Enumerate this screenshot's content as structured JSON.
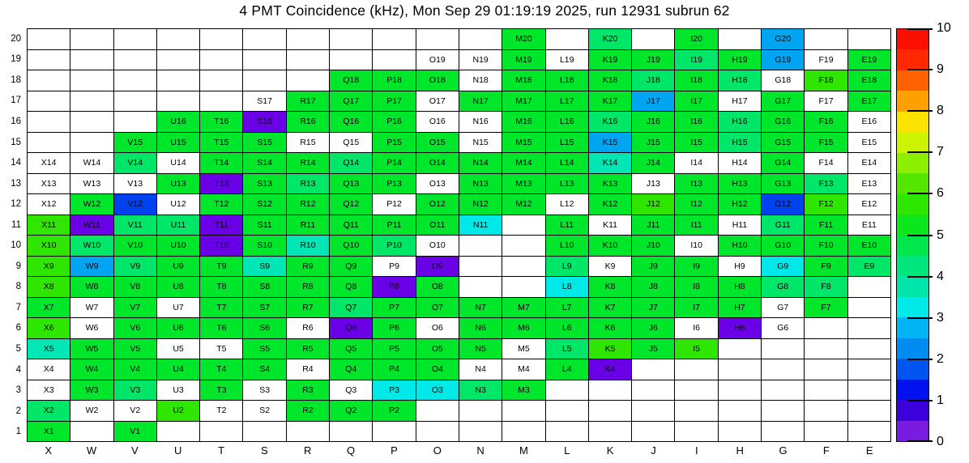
{
  "title": "4 PMT Coincidence (kHz), Mon Sep 29 01:19:19 2025, run 12931 subrun 62",
  "chart_data": {
    "type": "heatmap",
    "title": "4 PMT Coincidence (kHz), Mon Sep 29 01:19:19 2025, run 12931 subrun 62",
    "xlabel": "",
    "ylabel": "",
    "grid": "on",
    "columns": [
      "X",
      "W",
      "V",
      "U",
      "T",
      "S",
      "R",
      "Q",
      "P",
      "O",
      "N",
      "M",
      "L",
      "K",
      "J",
      "I",
      "H",
      "G",
      "F",
      "E"
    ],
    "rows": [
      20,
      19,
      18,
      17,
      16,
      15,
      14,
      13,
      12,
      11,
      10,
      9,
      8,
      7,
      6,
      5,
      4,
      3,
      2,
      1
    ],
    "palette": {
      "Y": "#2ee600",
      "G": "#00e62a",
      "S": "#00e668",
      "T": "#00e6b4",
      "C": "#00e9e9",
      "LB": "#00a5f2",
      "B": "#0043ee",
      "P": "#6a00e6",
      "W": "#ffffff"
    },
    "estimated_value_khz_by_code": {
      "Y": 6.2,
      "G": 5.7,
      "S": 5.1,
      "T": 4.2,
      "C": 3.7,
      "LB": 2.8,
      "B": 1.8,
      "P": 0.3,
      "W": 0
    },
    "cells": {
      "20": {
        "M": "G",
        "K": "S",
        "I": "G",
        "G": "LB"
      },
      "19": {
        "O": "W",
        "N": "W",
        "M": "G",
        "L": "W",
        "K": "G",
        "J": "G",
        "I": "S",
        "H": "G",
        "G": "LB",
        "F": "W",
        "E": "G"
      },
      "18": {
        "Q": "G",
        "P": "G",
        "O": "G",
        "N": "W",
        "M": "G",
        "L": "G",
        "K": "G",
        "J": "S",
        "I": "G",
        "H": "S",
        "G": "W",
        "F": "Y",
        "E": "G"
      },
      "17": {
        "S": "W",
        "R": "G",
        "Q": "G",
        "P": "G",
        "O": "W",
        "N": "G",
        "M": "G",
        "L": "G",
        "K": "G",
        "J": "LB",
        "I": "G",
        "H": "W",
        "G": "G",
        "F": "W",
        "E": "G"
      },
      "16": {
        "U": "G",
        "T": "G",
        "S": "P",
        "R": "G",
        "Q": "G",
        "P": "G",
        "O": "W",
        "N": "W",
        "M": "G",
        "L": "G",
        "K": "S",
        "J": "G",
        "I": "G",
        "H": "S",
        "G": "G",
        "F": "G",
        "E": "W"
      },
      "15": {
        "V": "G",
        "U": "G",
        "T": "G",
        "S": "G",
        "R": "W",
        "Q": "W",
        "P": "G",
        "O": "G",
        "N": "W",
        "M": "G",
        "L": "G",
        "K": "LB",
        "J": "G",
        "I": "G",
        "H": "S",
        "G": "G",
        "F": "G",
        "E": "W"
      },
      "14": {
        "X": "W",
        "W": "W",
        "V": "S",
        "U": "W",
        "T": "G",
        "S": "G",
        "R": "G",
        "Q": "S",
        "P": "G",
        "O": "G",
        "N": "G",
        "M": "G",
        "L": "G",
        "K": "T",
        "J": "G",
        "I": "W",
        "H": "W",
        "G": "G",
        "F": "W",
        "E": "W"
      },
      "13": {
        "X": "W",
        "W": "W",
        "V": "W",
        "U": "G",
        "T": "P",
        "S": "G",
        "R": "S",
        "Q": "G",
        "P": "G",
        "O": "W",
        "N": "G",
        "M": "G",
        "L": "G",
        "K": "G",
        "J": "W",
        "I": "G",
        "H": "G",
        "G": "G",
        "F": "S",
        "E": "W"
      },
      "12": {
        "X": "W",
        "W": "G",
        "V": "B",
        "U": "W",
        "T": "G",
        "S": "G",
        "R": "G",
        "Q": "G",
        "P": "W",
        "O": "G",
        "N": "G",
        "M": "G",
        "L": "W",
        "K": "G",
        "J": "Y",
        "I": "G",
        "H": "G",
        "G": "B",
        "F": "Y",
        "E": "W"
      },
      "11": {
        "X": "Y",
        "W": "P",
        "V": "S",
        "U": "S",
        "T": "P",
        "S": "G",
        "R": "G",
        "Q": "G",
        "P": "G",
        "O": "G",
        "N": "C",
        "L": "G",
        "K": "W",
        "J": "G",
        "I": "G",
        "H": "W",
        "G": "S",
        "F": "G",
        "E": "W"
      },
      "10": {
        "X": "Y",
        "W": "S",
        "V": "G",
        "U": "G",
        "T": "P",
        "S": "G",
        "R": "T",
        "Q": "G",
        "P": "S",
        "O": "W",
        "L": "G",
        "K": "G",
        "J": "G",
        "I": "W",
        "H": "G",
        "G": "G",
        "F": "G",
        "E": "G"
      },
      "9": {
        "X": "Y",
        "W": "LB",
        "V": "S",
        "U": "G",
        "T": "G",
        "S": "T",
        "R": "G",
        "Q": "G",
        "P": "W",
        "O": "P",
        "L": "S",
        "K": "W",
        "J": "G",
        "I": "G",
        "H": "W",
        "G": "C",
        "F": "G",
        "E": "S"
      },
      "8": {
        "X": "Y",
        "W": "G",
        "V": "G",
        "U": "G",
        "T": "G",
        "S": "G",
        "R": "G",
        "Q": "G",
        "P": "P",
        "O": "G",
        "L": "C",
        "K": "G",
        "J": "G",
        "I": "G",
        "H": "G",
        "G": "S",
        "F": "S"
      },
      "7": {
        "X": "G",
        "W": "W",
        "V": "G",
        "U": "W",
        "T": "G",
        "S": "G",
        "R": "G",
        "Q": "S",
        "P": "G",
        "O": "G",
        "N": "G",
        "M": "G",
        "L": "G",
        "K": "G",
        "J": "G",
        "I": "G",
        "H": "G",
        "G": "W",
        "F": "G"
      },
      "6": {
        "X": "Y",
        "W": "W",
        "V": "G",
        "U": "G",
        "T": "G",
        "S": "G",
        "R": "W",
        "Q": "P",
        "P": "G",
        "O": "W",
        "N": "G",
        "M": "G",
        "L": "G",
        "K": "G",
        "J": "G",
        "I": "W",
        "H": "P",
        "G": "W"
      },
      "5": {
        "X": "T",
        "W": "G",
        "V": "G",
        "U": "W",
        "T": "W",
        "S": "G",
        "R": "G",
        "Q": "G",
        "P": "G",
        "O": "G",
        "N": "G",
        "M": "W",
        "L": "S",
        "K": "Y",
        "J": "G",
        "I": "Y"
      },
      "4": {
        "X": "W",
        "W": "G",
        "V": "G",
        "U": "G",
        "T": "G",
        "S": "G",
        "R": "W",
        "Q": "G",
        "P": "G",
        "O": "G",
        "N": "W",
        "M": "W",
        "L": "G",
        "K": "P"
      },
      "3": {
        "X": "W",
        "W": "G",
        "V": "S",
        "U": "W",
        "T": "G",
        "S": "W",
        "R": "G",
        "Q": "W",
        "P": "C",
        "O": "C",
        "N": "S",
        "M": "G"
      },
      "2": {
        "X": "S",
        "W": "W",
        "V": "W",
        "U": "Y",
        "T": "W",
        "S": "W",
        "R": "G",
        "Q": "G",
        "P": "G"
      },
      "1": {
        "X": "G",
        "V": "G"
      }
    },
    "colorbar": {
      "min": 0,
      "max": 10,
      "tick_labels": [
        "10",
        "9",
        "8",
        "7",
        "6",
        "5",
        "4",
        "3",
        "2",
        "1",
        "0"
      ],
      "tick_values": [
        10,
        9,
        8,
        7,
        6,
        5,
        4,
        3,
        2,
        1,
        0
      ],
      "stops_top_to_bottom": [
        "#fa0f00",
        "#ff2800",
        "#ff6100",
        "#ffa000",
        "#fbe300",
        "#ccf300",
        "#8cee00",
        "#55e600",
        "#2ee600",
        "#0ce61c",
        "#00e64b",
        "#00e67d",
        "#00e6aa",
        "#00eaea",
        "#00b4f5",
        "#008cf0",
        "#0055f0",
        "#0011f0",
        "#3c00dc",
        "#7a1ce0"
      ]
    }
  }
}
